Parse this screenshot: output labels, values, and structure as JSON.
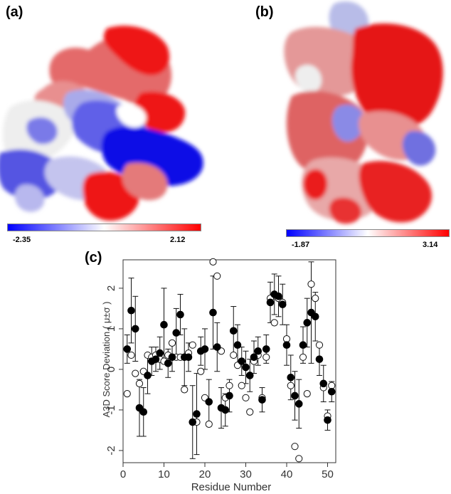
{
  "panels": {
    "a": {
      "label": "(a)",
      "scale_min": "-2.35",
      "scale_max": "2.12",
      "colors": {
        "low": "#0000ff",
        "mid": "#ffffff",
        "high": "#ff0000"
      }
    },
    "b": {
      "label": "(b)",
      "scale_min": "-1.87",
      "scale_max": "3.14",
      "colors": {
        "low": "#0000ff",
        "mid": "#ffffff",
        "high": "#ff0000"
      }
    },
    "c": {
      "label": "(c)"
    }
  },
  "chart_data": {
    "type": "scatter",
    "xlabel": "Residue Number",
    "ylabel": "A3D Score Deviation ( μ±σ )",
    "xlim": [
      0,
      52
    ],
    "ylim": [
      -2.3,
      2.7
    ],
    "xticks": [
      "0",
      "10",
      "20",
      "30",
      "40",
      "50"
    ],
    "yticks": [
      "-2",
      "-1",
      "0",
      "1",
      "2"
    ],
    "grid": false,
    "series": [
      {
        "marker": "filled",
        "x": [
          1,
          2,
          3,
          4,
          5,
          6,
          7,
          8,
          9,
          10,
          11,
          12,
          13,
          14,
          15,
          16,
          17,
          18,
          19,
          20,
          21,
          22,
          23,
          24,
          25,
          26,
          27,
          28,
          29,
          30,
          31,
          32,
          33,
          34,
          35,
          36,
          37,
          38,
          39,
          40,
          41,
          42,
          43,
          44,
          45,
          46,
          47,
          48,
          49,
          50,
          51
        ],
        "y": [
          0.5,
          1.45,
          1.0,
          -0.95,
          -1.05,
          -0.15,
          0.2,
          0.25,
          0.4,
          1.1,
          0.15,
          0.3,
          0.9,
          1.35,
          0.3,
          0.3,
          -1.3,
          -1.1,
          0.45,
          0.5,
          -0.8,
          1.4,
          0.55,
          -0.95,
          -1.0,
          -0.65,
          0.95,
          0.6,
          0.2,
          0.05,
          -0.15,
          0.3,
          0.45,
          -0.75,
          0.5,
          1.65,
          1.85,
          1.8,
          1.6,
          0.6,
          -0.2,
          -0.65,
          -0.85,
          0.6,
          1.15,
          1.4,
          1.3,
          0.25,
          -0.35,
          -1.25,
          -0.55
        ],
        "err": [
          0.35,
          0.8,
          0.8,
          0.7,
          0.6,
          0.45,
          0.35,
          0.3,
          0.4,
          0.9,
          0.35,
          0.35,
          0.6,
          0.5,
          0.7,
          0.35,
          0.9,
          1.0,
          0.35,
          0.5,
          0.55,
          0.9,
          0.6,
          0.5,
          0.4,
          0.4,
          0.6,
          0.5,
          0.35,
          0.4,
          0.4,
          0.4,
          0.35,
          0.3,
          0.35,
          0.5,
          0.5,
          0.5,
          0.5,
          0.5,
          0.55,
          0.6,
          0.6,
          0.45,
          0.6,
          1.25,
          0.6,
          0.4,
          0.45,
          0.25,
          0.25
        ]
      },
      {
        "marker": "open",
        "x": [
          1,
          2,
          3,
          4,
          5,
          6,
          7,
          8,
          9,
          10,
          11,
          12,
          13,
          14,
          15,
          16,
          17,
          18,
          19,
          20,
          21,
          22,
          23,
          24,
          25,
          26,
          27,
          28,
          29,
          30,
          31,
          32,
          33,
          34,
          35,
          36,
          37,
          38,
          39,
          40,
          41,
          42,
          43,
          44,
          45,
          46,
          47,
          48,
          49,
          50,
          51
        ],
        "y": [
          -0.6,
          0.35,
          -0.1,
          -0.35,
          -0.05,
          0.35,
          0.3,
          0.35,
          0.25,
          0.2,
          0.35,
          0.65,
          0.3,
          0.3,
          -0.5,
          0.4,
          0.6,
          -1.3,
          -0.05,
          -0.7,
          -1.35,
          2.65,
          2.3,
          0.45,
          -0.7,
          -0.4,
          0.35,
          0.1,
          -0.4,
          -0.7,
          -1.05,
          0.2,
          0.35,
          -0.7,
          0.3,
          1.75,
          1.15,
          1.75,
          1.65,
          0.75,
          -0.4,
          -1.9,
          -2.2,
          0.3,
          -0.6,
          2.1,
          1.75,
          0.6,
          -0.45,
          -1.15,
          -0.4
        ]
      }
    ]
  }
}
